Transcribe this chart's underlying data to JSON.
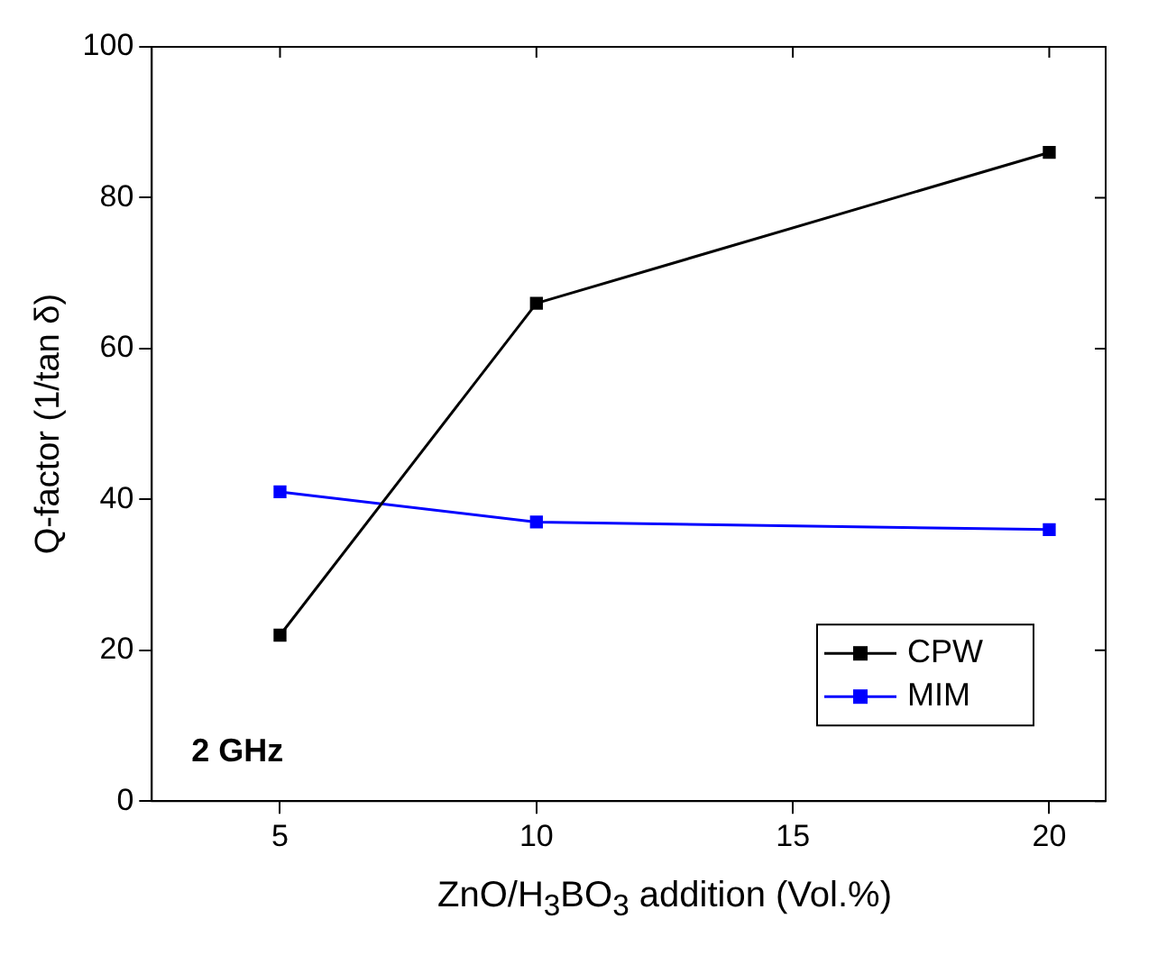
{
  "chart_data": {
    "type": "line",
    "xlabel": "ZnO/H$_{3}$BO$_{3}$ addition (Vol.%)",
    "ylabel": "Q-factor (1/tan δ)",
    "x": [
      5,
      10,
      20
    ],
    "series": [
      {
        "name": "CPW",
        "color": "#000000",
        "values": [
          22,
          66,
          86
        ]
      },
      {
        "name": "MIM",
        "color": "#0000ff",
        "values": [
          41,
          37,
          36
        ]
      }
    ],
    "xlim": [
      2.5,
      21.1
    ],
    "xticks": [
      5,
      10,
      15,
      20
    ],
    "ylim": [
      0,
      100
    ],
    "yticks": [
      0,
      20,
      40,
      60,
      80,
      100
    ],
    "annotations": [
      "2 GHz"
    ],
    "legend": "bottom right",
    "marker": "square",
    "line_style": "solid",
    "grid": false
  }
}
